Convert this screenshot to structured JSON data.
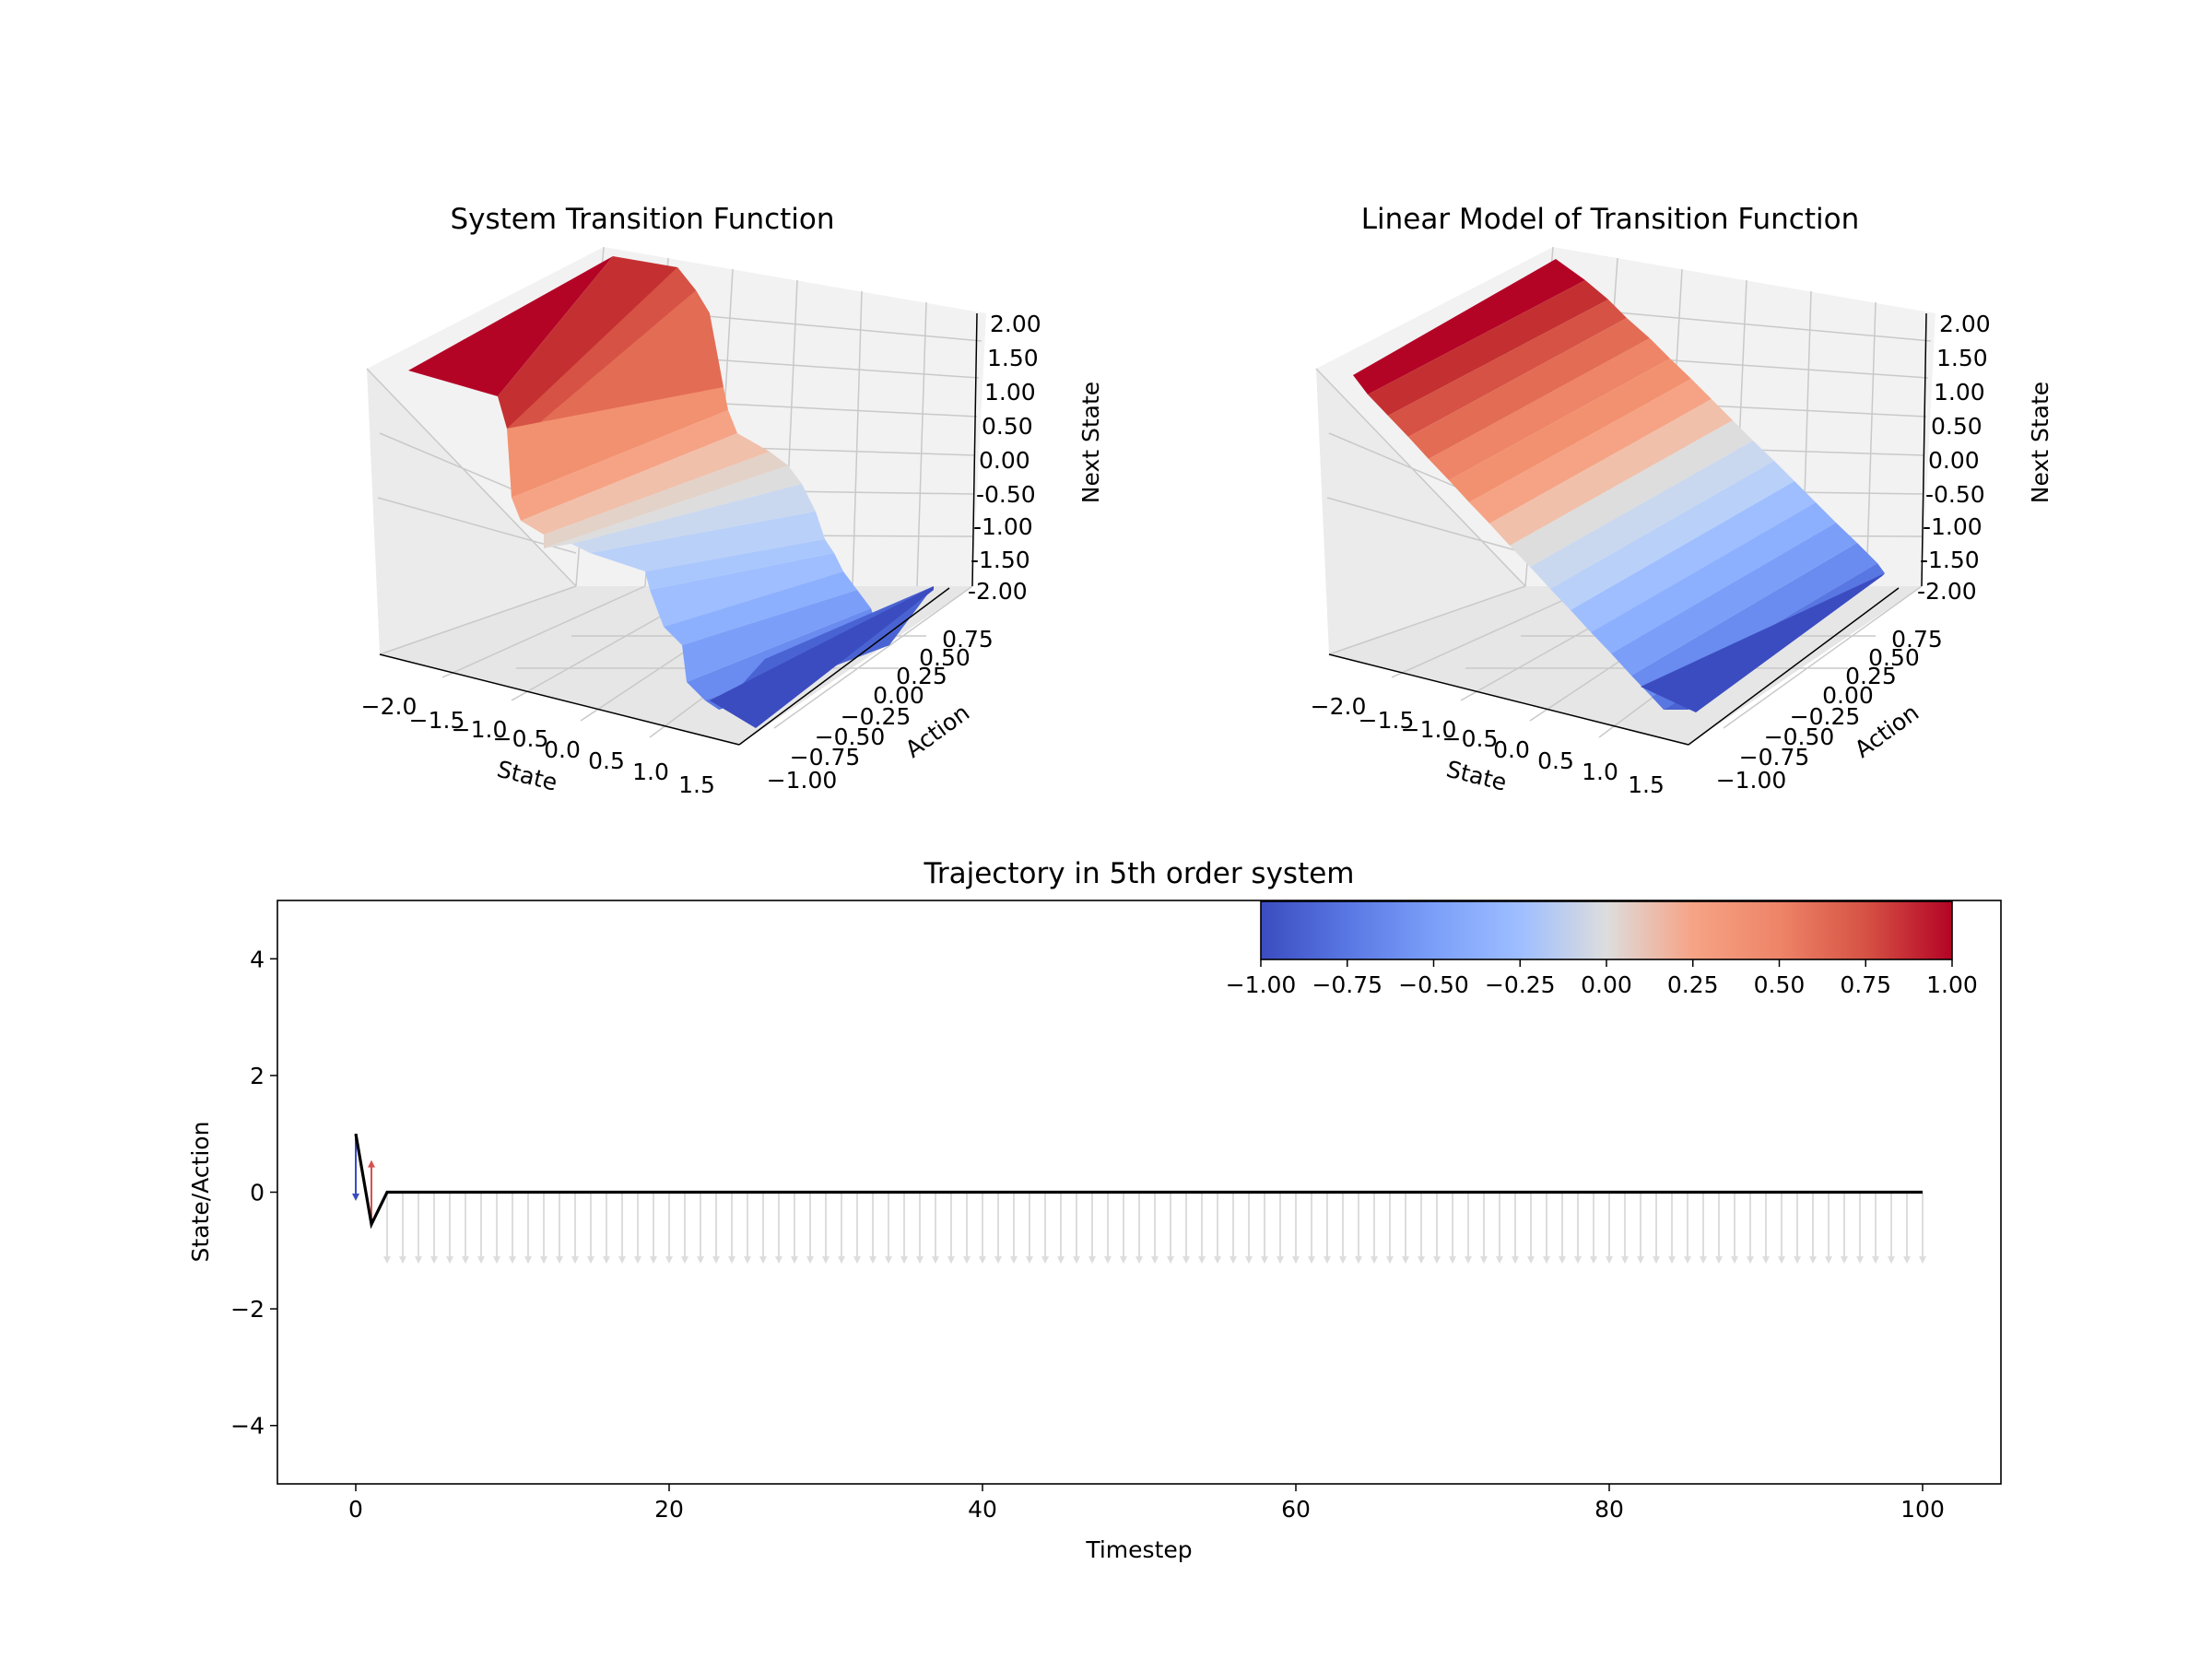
{
  "chart_data": [
    {
      "type": "surface3d",
      "title": "System Transition Function",
      "xlabel": "State",
      "ylabel": "Action",
      "zlabel": "Next State",
      "x_ticks": [
        "−2.0",
        "−1.5",
        "−1.0",
        "−0.5",
        "0.0",
        "0.5",
        "1.0",
        "1.5"
      ],
      "y_ticks": [
        "−1.00",
        "−0.75",
        "−0.50",
        "−0.25",
        "0.00",
        "0.25",
        "0.50",
        "0.75"
      ],
      "z_ticks": [
        "-2.00",
        "-1.50",
        "-1.00",
        "-0.50",
        "0.00",
        "0.50",
        "1.00",
        "1.50",
        "2.00"
      ],
      "xlim": [
        -2.0,
        2.0
      ],
      "ylim": [
        -1.0,
        1.0
      ],
      "zlim": [
        -2.0,
        2.0
      ],
      "cmap": "coolwarm",
      "grid": true
    },
    {
      "type": "surface3d",
      "title": "Linear Model of Transition Function",
      "xlabel": "State",
      "ylabel": "Action",
      "zlabel": "Next State",
      "x_ticks": [
        "−2.0",
        "−1.5",
        "−1.0",
        "−0.5",
        "0.0",
        "0.5",
        "1.0",
        "1.5"
      ],
      "y_ticks": [
        "−1.00",
        "−0.75",
        "−0.50",
        "−0.25",
        "0.00",
        "0.25",
        "0.50",
        "0.75"
      ],
      "z_ticks": [
        "-2.00",
        "-1.50",
        "-1.00",
        "-0.50",
        "0.00",
        "0.50",
        "1.00",
        "1.50",
        "2.00"
      ],
      "xlim": [
        -2.0,
        2.0
      ],
      "ylim": [
        -1.0,
        1.0
      ],
      "zlim": [
        -2.0,
        2.0
      ],
      "cmap": "coolwarm",
      "grid": true
    },
    {
      "type": "line",
      "title": "Trajectory in 5th order system",
      "xlabel": "Timestep",
      "ylabel": "State/Action",
      "xlim": [
        -5,
        105
      ],
      "ylim": [
        -5,
        5
      ],
      "x_ticks": [
        0,
        20,
        40,
        60,
        80,
        100
      ],
      "y_ticks": [
        -4,
        -2,
        0,
        2,
        4
      ],
      "y_tick_labels": [
        "−4",
        "−2",
        "0",
        "2",
        "4"
      ],
      "state": {
        "x": [
          0,
          1,
          2,
          100
        ],
        "y": [
          1.0,
          -0.55,
          0.0,
          0.0
        ],
        "color": "#000000"
      },
      "actions": {
        "description": "arrows at each timestep",
        "first": [
          {
            "t": 0,
            "from": 1.0,
            "to": -0.15,
            "value": -1.0
          },
          {
            "t": 1,
            "from": -0.55,
            "to": 0.55,
            "value": 0.7
          }
        ],
        "rest_start": 2,
        "rest_end": 100,
        "rest_from": 0.0,
        "rest_to": -1.1,
        "rest_value": 0.0
      },
      "colorbar": {
        "min": -1.0,
        "max": 1.0,
        "ticks": [
          "−1.00",
          "−0.75",
          "−0.50",
          "−0.25",
          "0.00",
          "0.25",
          "0.50",
          "0.75",
          "1.00"
        ],
        "cmap": "coolwarm",
        "placement": "top-right"
      }
    }
  ]
}
